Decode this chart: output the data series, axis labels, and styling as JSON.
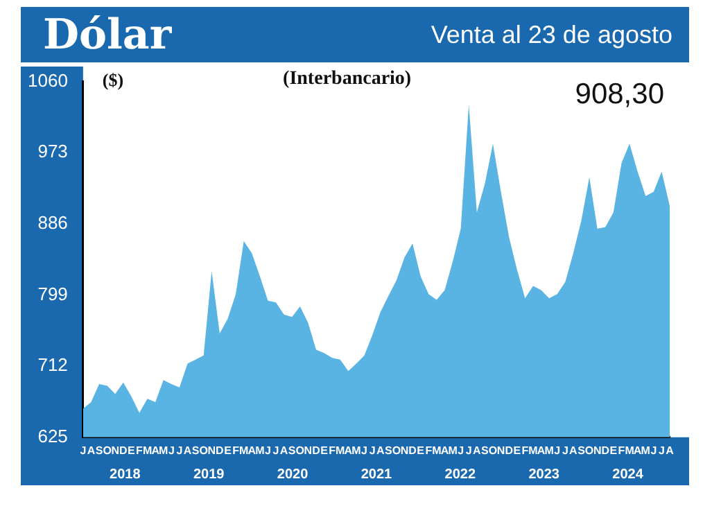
{
  "chart_data": {
    "type": "area",
    "title": "Dólar",
    "subtitle": "Venta al 23 de agosto",
    "ylabel": "($)",
    "annotations": [
      "(Interbancario)",
      "908,30",
      "2018",
      "2019",
      "2020",
      "2021",
      "2022",
      "2023",
      "2024"
    ],
    "categories": [
      "J",
      "A",
      "S",
      "O",
      "N",
      "D",
      "E",
      "F",
      "M",
      "A",
      "M",
      "J",
      "J",
      "A",
      "S",
      "O",
      "N",
      "D",
      "E",
      "F",
      "M",
      "A",
      "M",
      "J",
      "J",
      "A",
      "S",
      "O",
      "N",
      "D",
      "E",
      "F",
      "M",
      "A",
      "M",
      "J",
      "J",
      "A",
      "S",
      "O",
      "N",
      "D",
      "E",
      "F",
      "M",
      "A",
      "M",
      "J",
      "J",
      "A",
      "S",
      "O",
      "N",
      "D",
      "E",
      "F",
      "M",
      "A",
      "M",
      "J",
      "J",
      "A",
      "S",
      "O",
      "N",
      "D",
      "E",
      "F",
      "M",
      "A",
      "M",
      "J",
      "J",
      "A"
    ],
    "series": [
      {
        "color": "#5ab4e3",
        "values": [
          660,
          668,
          690,
          688,
          678,
          692,
          675,
          655,
          672,
          668,
          695,
          690,
          686,
          715,
          720,
          725,
          828,
          752,
          770,
          800,
          865,
          850,
          822,
          792,
          790,
          775,
          772,
          785,
          765,
          732,
          728,
          722,
          720,
          706,
          715,
          725,
          750,
          778,
          798,
          817,
          845,
          862,
          822,
          800,
          793,
          805,
          840,
          880,
          1032,
          900,
          935,
          984,
          925,
          870,
          830,
          795,
          810,
          805,
          795,
          800,
          815,
          850,
          890,
          943,
          880,
          882,
          900,
          960,
          984,
          950,
          920,
          925,
          950,
          908
        ]
      }
    ],
    "ylim": [
      625,
      1060
    ],
    "yticks": [
      625,
      712,
      799,
      886,
      973,
      1060
    ],
    "grid": false,
    "legend": false
  }
}
